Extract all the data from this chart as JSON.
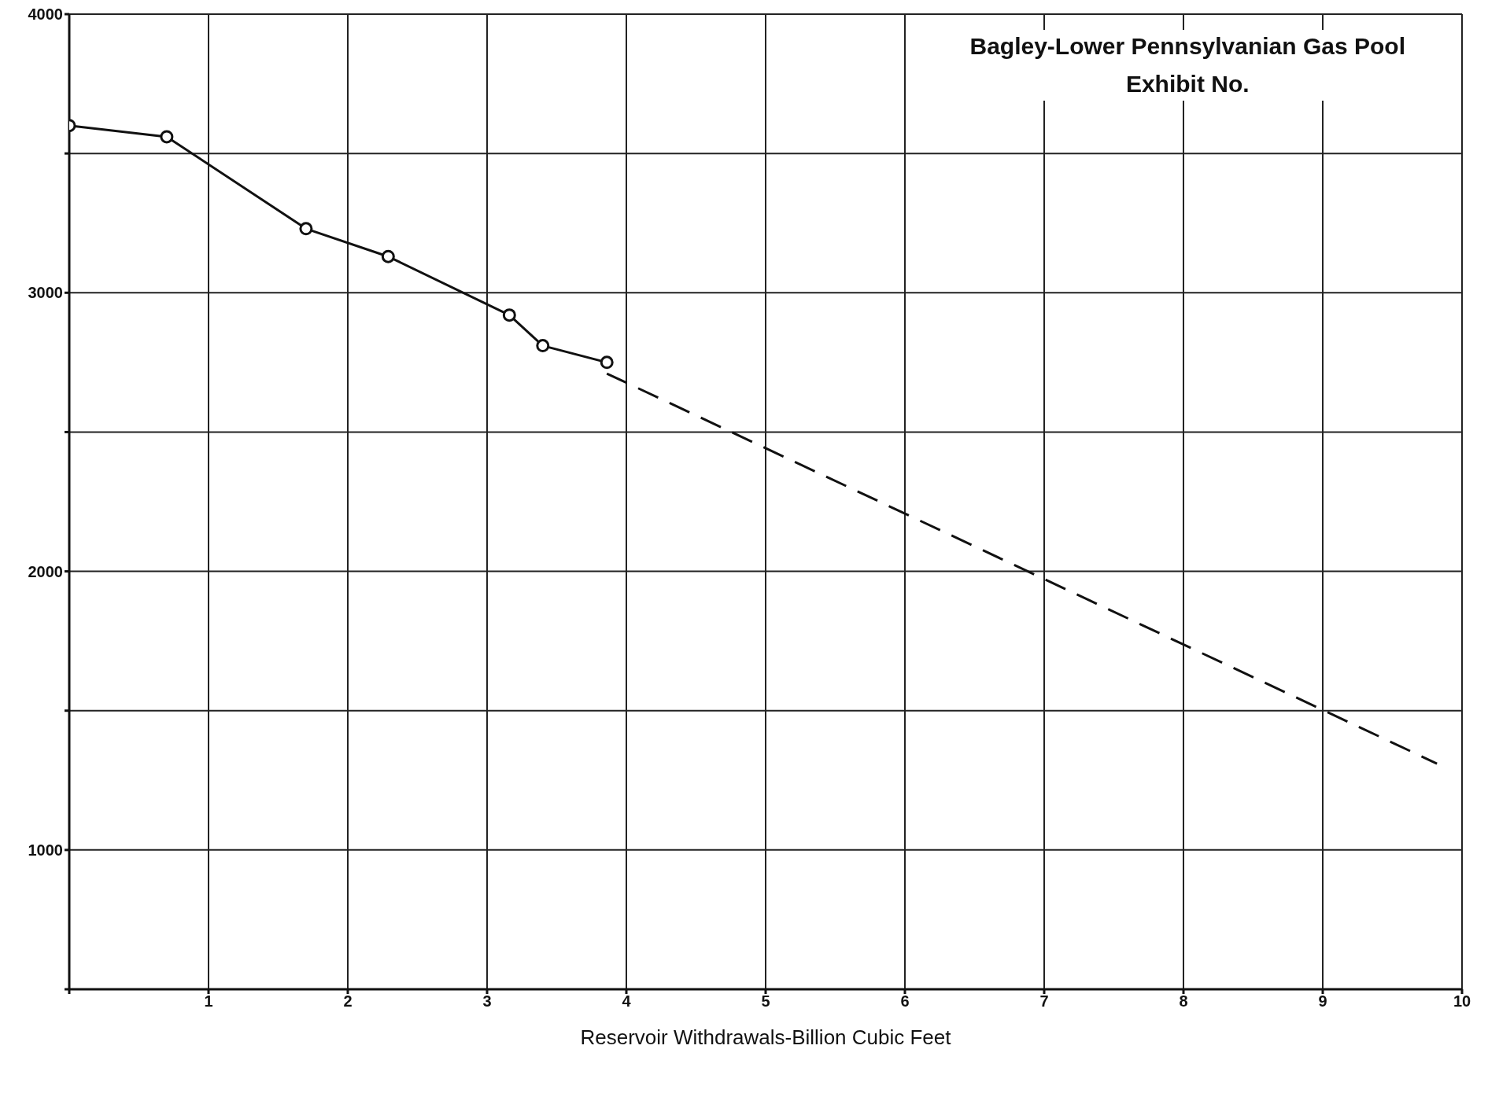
{
  "chart_data": {
    "type": "line",
    "title": "Bagley-Lower Pennsylvanian Gas Pool",
    "subtitle": "Exhibit No.",
    "xlabel": "Reservoir Withdrawals-Billion Cubic Feet",
    "series": [
      {
        "color": "#111111",
        "marker": "circle",
        "line_style": "solid",
        "x": [
          0,
          0.7,
          1.7,
          2.29,
          3.16,
          3.4,
          3.86
        ],
        "values": [
          3600,
          3560,
          3230,
          3130,
          2920,
          2810,
          2750
        ]
      },
      {
        "color": "#111111",
        "marker": "none",
        "line_style": "dashed",
        "x": [
          3.86,
          9.82
        ],
        "values": [
          2710,
          1310
        ]
      }
    ],
    "xlim": [
      0,
      10
    ],
    "xticks": [
      {
        "value": 0,
        "label": null
      },
      1,
      2,
      3,
      4,
      5,
      6,
      7,
      8,
      9,
      10
    ],
    "ylim": [
      500,
      4000
    ],
    "yticks": [
      {
        "value": 500,
        "label": null
      },
      1000,
      {
        "value": 1500,
        "label": null
      },
      2000,
      {
        "value": 2500,
        "label": null
      },
      3000,
      {
        "value": 3500,
        "label": null
      },
      4000
    ],
    "grid": true
  }
}
